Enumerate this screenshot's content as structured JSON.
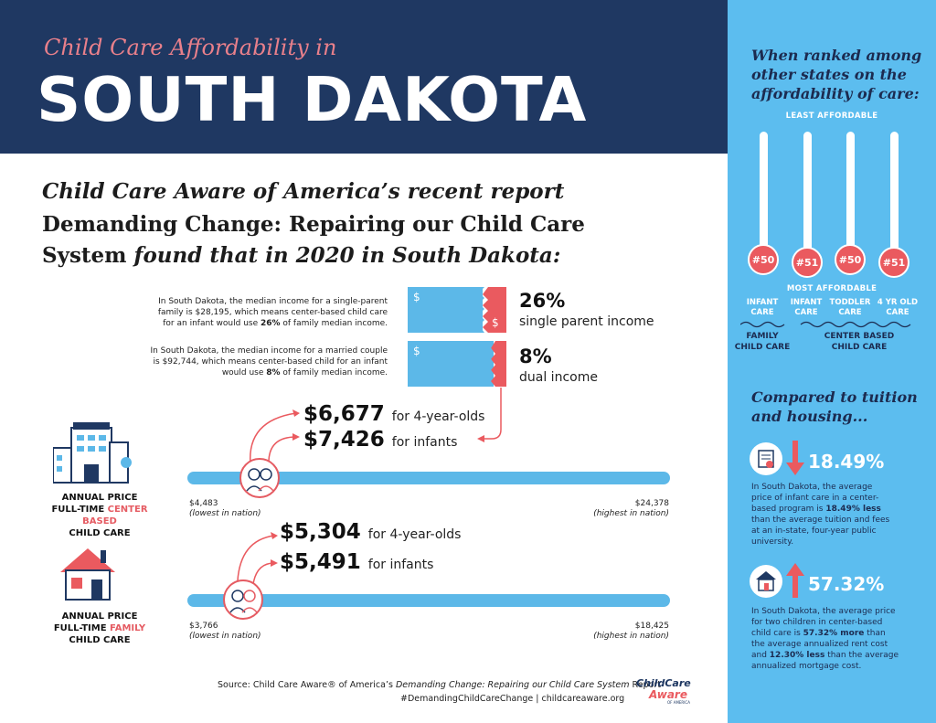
{
  "header": {
    "subtitle": "Child Care Affordability in",
    "title": "SOUTH DAKOTA"
  },
  "intro": {
    "line1": "Child Care Aware of America’s recent report",
    "line2": "Demanding Change: Repairing our Child Care",
    "line3a": "System",
    "line3b": "found that in 2020 in South Dakota:"
  },
  "income": [
    {
      "desc_line1": "In South Dakota, the median income for a single-parent",
      "desc_line2": "family is $28,195, which means center-based child care",
      "desc_line3a": "for an infant would use ",
      "desc_bold": "26%",
      "desc_line3b": " of family median income.",
      "percent": "26%",
      "label": "single parent income",
      "share": 0.26
    },
    {
      "desc_line1": "In South Dakota, the median income for a married couple",
      "desc_line2": "is $92,744, which means center-based child for an infant",
      "desc_line3a": "would use ",
      "desc_bold": "8%",
      "desc_line3b": " of family median income.",
      "percent": "8%",
      "label": "dual income",
      "share": 0.08
    }
  ],
  "dollar_sign": "$",
  "center": {
    "label_line1": "ANNUAL PRICE",
    "label_line2a": "FULL-TIME ",
    "label_red": "CENTER BASED",
    "label_line3": "CHILD CARE",
    "price1": "$6,677",
    "price1_label": "for 4-year-olds",
    "price2": "$7,426",
    "price2_label": "for infants",
    "min": "$4,483",
    "max": "$24,378",
    "min_label": "(lowest in nation)",
    "max_label": "(highest in nation)"
  },
  "family": {
    "label_line1": "ANNUAL PRICE",
    "label_line2a": "FULL-TIME ",
    "label_red": "FAMILY",
    "label_line3": "CHILD CARE",
    "price1": "$5,304",
    "price1_label": "for 4-year-olds",
    "price2": "$5,491",
    "price2_label": "for infants",
    "min": "$3,766",
    "max": "$18,425",
    "min_label": "(lowest in nation)",
    "max_label": "(highest in nation)"
  },
  "source": {
    "a": "Source: Child Care Aware® of America’s ",
    "b": "Demanding Change: Repairing our Child Care System",
    "c": " Report",
    "hashtag": "#DemandingChildCareChange | childcareaware.org",
    "logo_line1": "ChildCare",
    "logo_line2": "Aware",
    "logo_line3": "OF AMERICA"
  },
  "ranking": {
    "heading1": "When ranked among",
    "heading2": "other states on the",
    "heading3": "affordability of care:",
    "top": "LEAST AFFORDABLE",
    "bottom": "MOST AFFORDABLE",
    "columns": [
      {
        "rank": "#50",
        "line1": "INFANT",
        "line2": "CARE"
      },
      {
        "rank": "#51",
        "line1": "INFANT",
        "line2": "CARE"
      },
      {
        "rank": "#50",
        "line1": "TODDLER",
        "line2": "CARE"
      },
      {
        "rank": "#51",
        "line1": "4 YR OLD",
        "line2": "CARE"
      }
    ],
    "group1_line1": "FAMILY",
    "group1_line2": "CHILD CARE",
    "group2_line1": "CENTER BASED",
    "group2_line2": "CHILD CARE"
  },
  "compare": {
    "heading1": "Compared to tuition",
    "heading2": "and housing...",
    "tuition": {
      "pct": "18.49%",
      "t1": "In South Dakota, the average",
      "t2": "price of infant care in a center-",
      "t3a": "based program is ",
      "t3b": "18.49% less",
      "t4": "than the average tuition and fees",
      "t5": "at an in-state, four-year public",
      "t6": "university."
    },
    "housing": {
      "pct": "57.32%",
      "t1": "In South Dakota, the average price",
      "t2": "for two children in center-based",
      "t3a": "child care is ",
      "t3b": "57.32% more",
      "t3c": " than",
      "t4": "the average annualized rent cost",
      "t5a": "and ",
      "t5b": "12.30% less",
      "t5c": " than the average",
      "t6": "annualized mortgage cost."
    }
  },
  "colors": {
    "navy": "#1f3862",
    "blue": "#5cb8e8",
    "red": "#ea5a5f",
    "pink": "#e9808b"
  }
}
